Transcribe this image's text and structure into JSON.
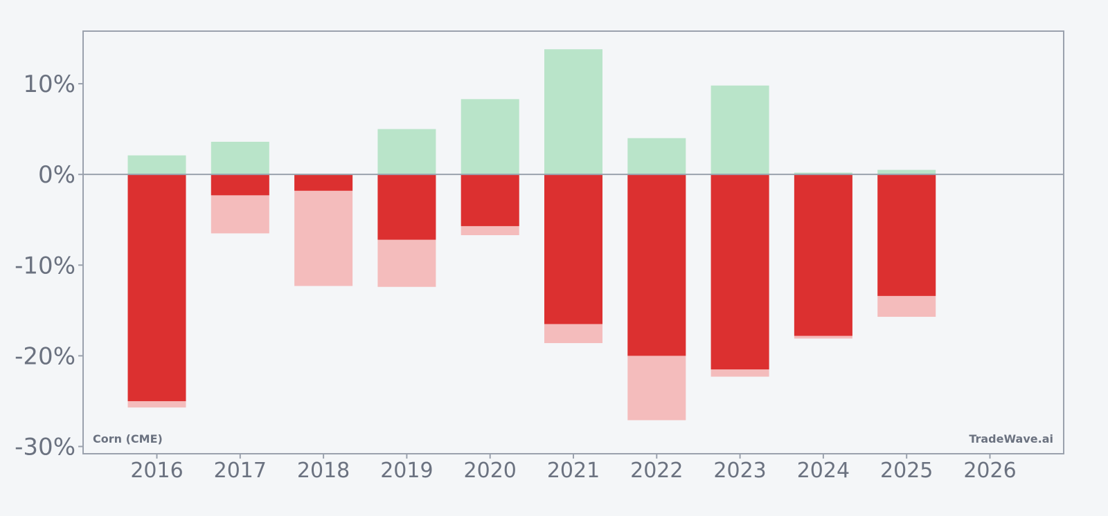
{
  "chart_data": {
    "type": "bar",
    "categories": [
      "2016",
      "2017",
      "2018",
      "2019",
      "2020",
      "2021",
      "2022",
      "2023",
      "2024",
      "2025",
      "2026"
    ],
    "series": [
      {
        "values": [
          2.1,
          3.6,
          null,
          5.0,
          8.3,
          13.8,
          4.0,
          9.8,
          0.2,
          0.5,
          null
        ]
      },
      {
        "values": [
          -25.0,
          -2.3,
          -1.8,
          -7.2,
          -5.7,
          -16.5,
          -20.0,
          -21.5,
          -17.8,
          -13.4,
          null
        ]
      },
      {
        "values": [
          -25.7,
          -6.5,
          -12.3,
          -12.4,
          -6.7,
          -18.6,
          -27.1,
          -22.3,
          -18.1,
          -15.7,
          null
        ]
      }
    ],
    "ylim": [
      -30.8,
      15.8
    ],
    "yticks": [
      10,
      0,
      -10,
      -20,
      -30
    ],
    "ytick_labels": [
      "10%",
      "0%",
      "-10%",
      "-20%",
      "-30%"
    ],
    "grid": false,
    "colors": {
      "gain": "#b9e4c9",
      "loss": "#dc3030",
      "loss_extent": "#f4bcbc",
      "frame": "#9aa1ad",
      "text": "#6b7280",
      "background": "#f4f6f8"
    }
  },
  "annotations": {
    "left": "Corn (CME)",
    "right": "TradeWave.ai"
  }
}
